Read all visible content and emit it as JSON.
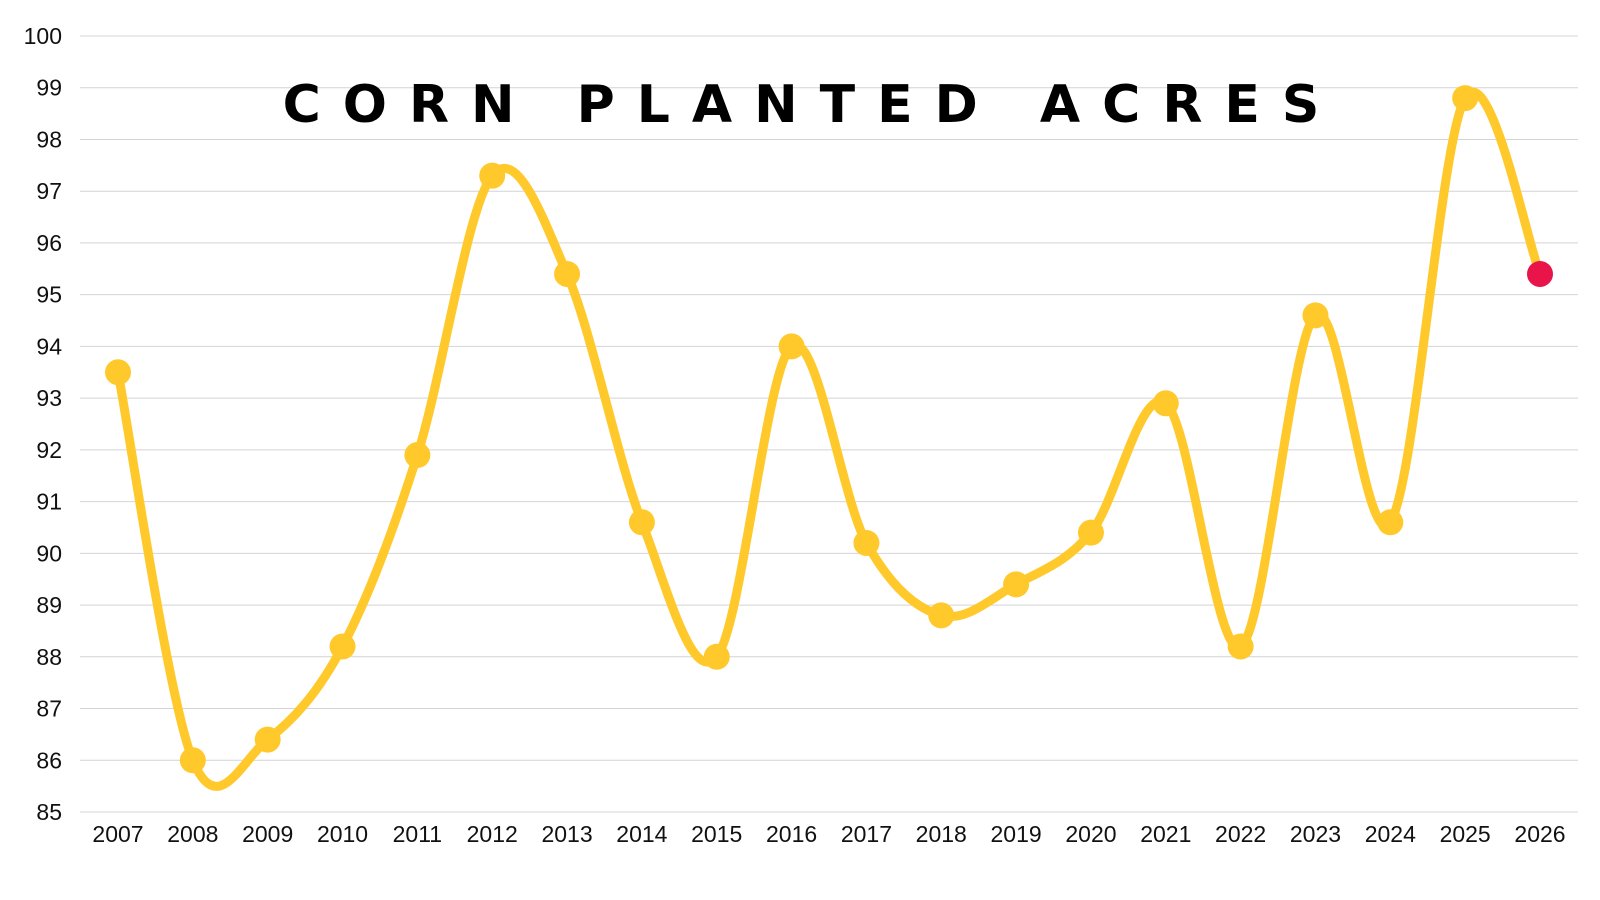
{
  "chart_data": {
    "type": "line",
    "title": "CORN PLANTED ACRES",
    "xlabel": "",
    "ylabel": "",
    "ylim": [
      85,
      100
    ],
    "yticks": [
      "85",
      "86",
      "87",
      "88",
      "89",
      "90",
      "91",
      "92",
      "93",
      "94",
      "95",
      "96",
      "97",
      "98",
      "99",
      "100"
    ],
    "grid": true,
    "categories": [
      "2007",
      "2008",
      "2009",
      "2010",
      "2011",
      "2012",
      "2013",
      "2014",
      "2015",
      "2016",
      "2017",
      "2018",
      "2019",
      "2020",
      "2021",
      "2022",
      "2023",
      "2024",
      "2025",
      "2026"
    ],
    "series": [
      {
        "name": "Corn Planted Acres",
        "values": [
          93.5,
          86.0,
          86.4,
          88.2,
          91.9,
          97.3,
          95.4,
          90.6,
          88.0,
          94.0,
          90.2,
          88.8,
          89.4,
          90.4,
          92.9,
          88.2,
          94.6,
          90.6,
          98.8,
          95.4
        ]
      }
    ],
    "colors": {
      "line": "#FFC92C",
      "point": "#FFC92C",
      "highlight_point": "#E8144A",
      "grid": "#D4D4D4"
    },
    "highlight_index": 19
  }
}
